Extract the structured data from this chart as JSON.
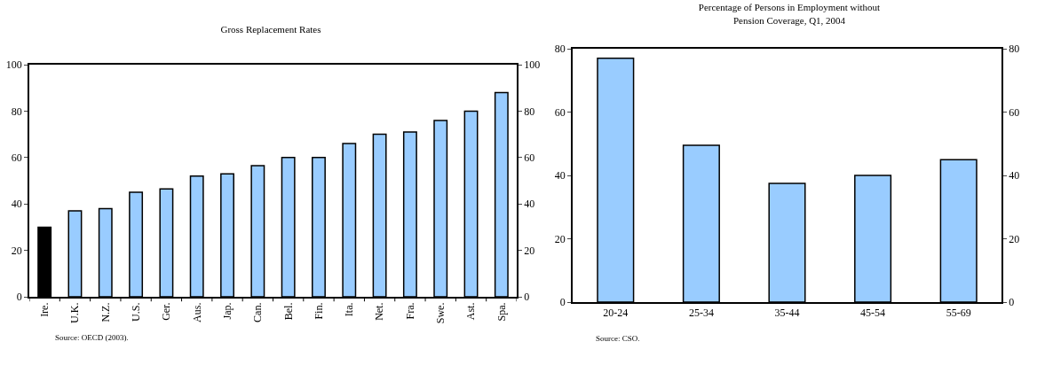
{
  "chart_data": [
    {
      "type": "bar",
      "title": "Gross Replacement Rates",
      "categories": [
        "Ire.",
        "U.K.",
        "N.Z.",
        "U.S.",
        "Ger.",
        "Aus.",
        "Jap.",
        "Can.",
        "Bel.",
        "Fin.",
        "Ita.",
        "Net.",
        "Fra.",
        "Swe.",
        "Ast.",
        "Spa."
      ],
      "values": [
        30,
        37,
        38,
        45,
        46.5,
        52,
        53,
        56.5,
        60,
        60,
        66,
        70,
        71,
        76,
        80,
        88
      ],
      "colors": [
        "#000000",
        "#99ccff",
        "#99ccff",
        "#99ccff",
        "#99ccff",
        "#99ccff",
        "#99ccff",
        "#99ccff",
        "#99ccff",
        "#99ccff",
        "#99ccff",
        "#99ccff",
        "#99ccff",
        "#99ccff",
        "#99ccff",
        "#99ccff"
      ],
      "ylim": [
        0,
        100
      ],
      "yticks": [
        0,
        20,
        40,
        60,
        80,
        100
      ],
      "y2lim": [
        0,
        100
      ],
      "y2ticks": [
        0,
        20,
        40,
        60,
        80,
        100
      ],
      "annotations": [
        "Source: OECD (2003)."
      ]
    },
    {
      "type": "bar",
      "title": "Percentage of Persons in Employment without Pension Coverage, Q1, 2004",
      "categories": [
        "20-24",
        "25-34",
        "35-44",
        "45-54",
        "55-69"
      ],
      "values": [
        77,
        49.5,
        37.5,
        40,
        45
      ],
      "color": "#99ccff",
      "ylim": [
        0,
        80
      ],
      "yticks": [
        0,
        20,
        40,
        60,
        80
      ],
      "y2lim": [
        0,
        80
      ],
      "y2ticks": [
        0,
        20,
        40,
        60,
        80
      ],
      "annotations": [
        "Source: CSO."
      ]
    }
  ]
}
